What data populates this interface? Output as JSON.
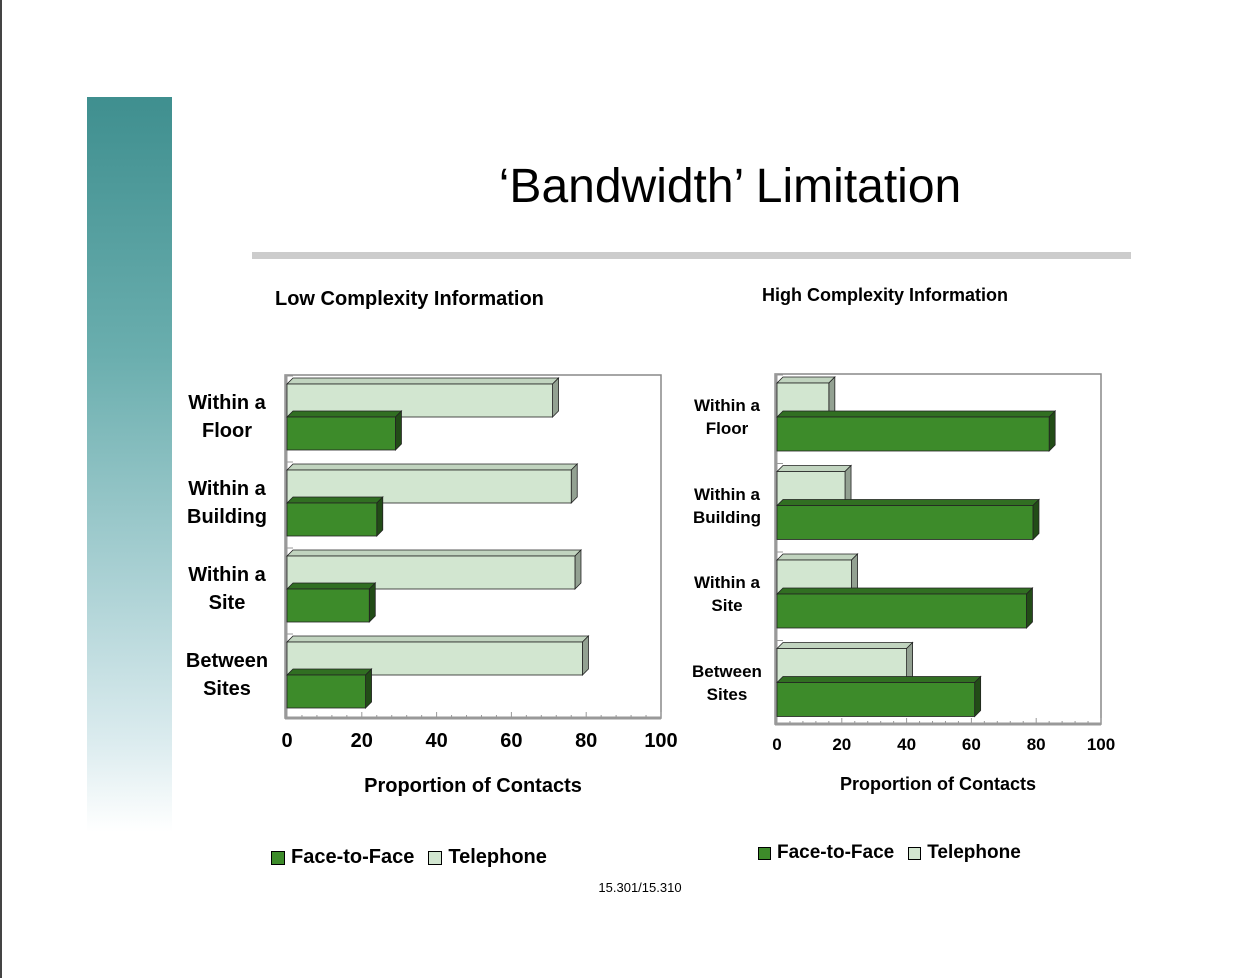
{
  "slide": {
    "title": "‘Bandwidth’ Limitation",
    "footer": "15.301/15.310"
  },
  "colors": {
    "face_to_face": "#3d8b2a",
    "telephone": "#d2e6d0",
    "sidebar_top": "#3f8f8f",
    "rule": "#cccccc"
  },
  "chart_data": [
    {
      "type": "bar",
      "orientation": "horizontal",
      "title": "Low Complexity Information",
      "categories": [
        "Within a Floor",
        "Within a Building",
        "Within a Site",
        "Between Sites"
      ],
      "category_lines": [
        [
          "Within a",
          "Floor"
        ],
        [
          "Within a",
          "Building"
        ],
        [
          "Within a",
          "Site"
        ],
        [
          "Between",
          "Sites"
        ]
      ],
      "series": [
        {
          "name": "Telephone",
          "values": [
            71,
            76,
            77,
            79
          ]
        },
        {
          "name": "Face-to-Face",
          "values": [
            29,
            24,
            22,
            21
          ]
        }
      ],
      "xlabel": "Proportion of Contacts",
      "xlim": [
        0,
        100
      ],
      "ticks": [
        "0",
        "20",
        "40",
        "60",
        "80",
        "100"
      ],
      "legend": [
        "Face-to-Face",
        "Telephone"
      ],
      "legend_position": "bottom",
      "grid": false
    },
    {
      "type": "bar",
      "orientation": "horizontal",
      "title": "High Complexity Information",
      "categories": [
        "Within a Floor",
        "Within a Building",
        "Within a Site",
        "Between Sites"
      ],
      "category_lines": [
        [
          "Within a",
          "Floor"
        ],
        [
          "Within a",
          "Building"
        ],
        [
          "Within a",
          "Site"
        ],
        [
          "Between",
          "Sites"
        ]
      ],
      "series": [
        {
          "name": "Telephone",
          "values": [
            16,
            21,
            23,
            40
          ]
        },
        {
          "name": "Face-to-Face",
          "values": [
            84,
            79,
            77,
            61
          ]
        }
      ],
      "xlabel": "Proportion of Contacts",
      "xlim": [
        0,
        100
      ],
      "ticks": [
        "0",
        "20",
        "40",
        "60",
        "80",
        "100"
      ],
      "legend": [
        "Face-to-Face",
        "Telephone"
      ],
      "legend_position": "bottom",
      "grid": false
    }
  ]
}
